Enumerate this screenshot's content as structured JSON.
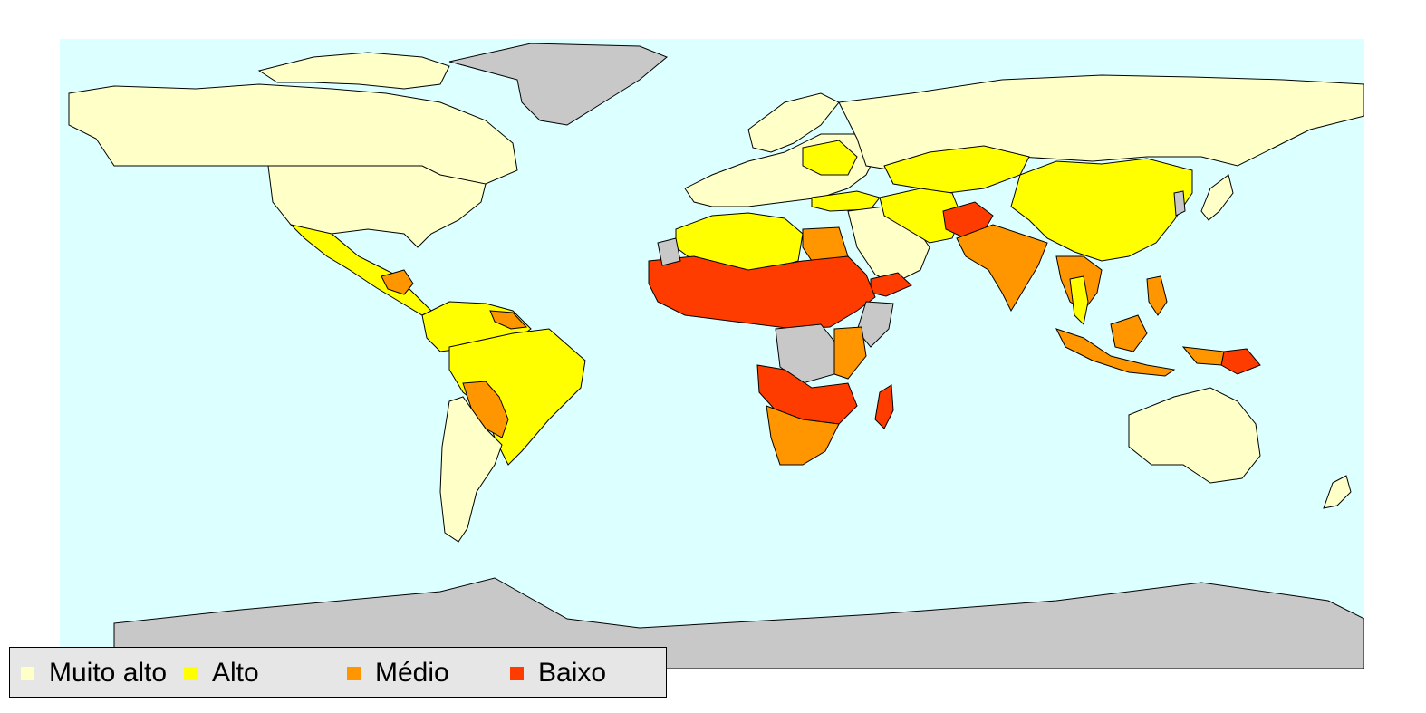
{
  "map": {
    "title": "",
    "colors": {
      "ocean": "#dcffff",
      "no_data": "#c8c8c8",
      "muito_alto": "#ffffc8",
      "alto": "#ffff00",
      "medio": "#ff9600",
      "baixo": "#ff3c00"
    }
  },
  "legend": {
    "items": [
      {
        "label": "Muito alto",
        "color": "#ffffc8"
      },
      {
        "label": "Alto",
        "color": "#ffff00"
      },
      {
        "label": "Médio",
        "color": "#ff9600"
      },
      {
        "label": "Baixo",
        "color": "#ff3c00"
      }
    ]
  }
}
